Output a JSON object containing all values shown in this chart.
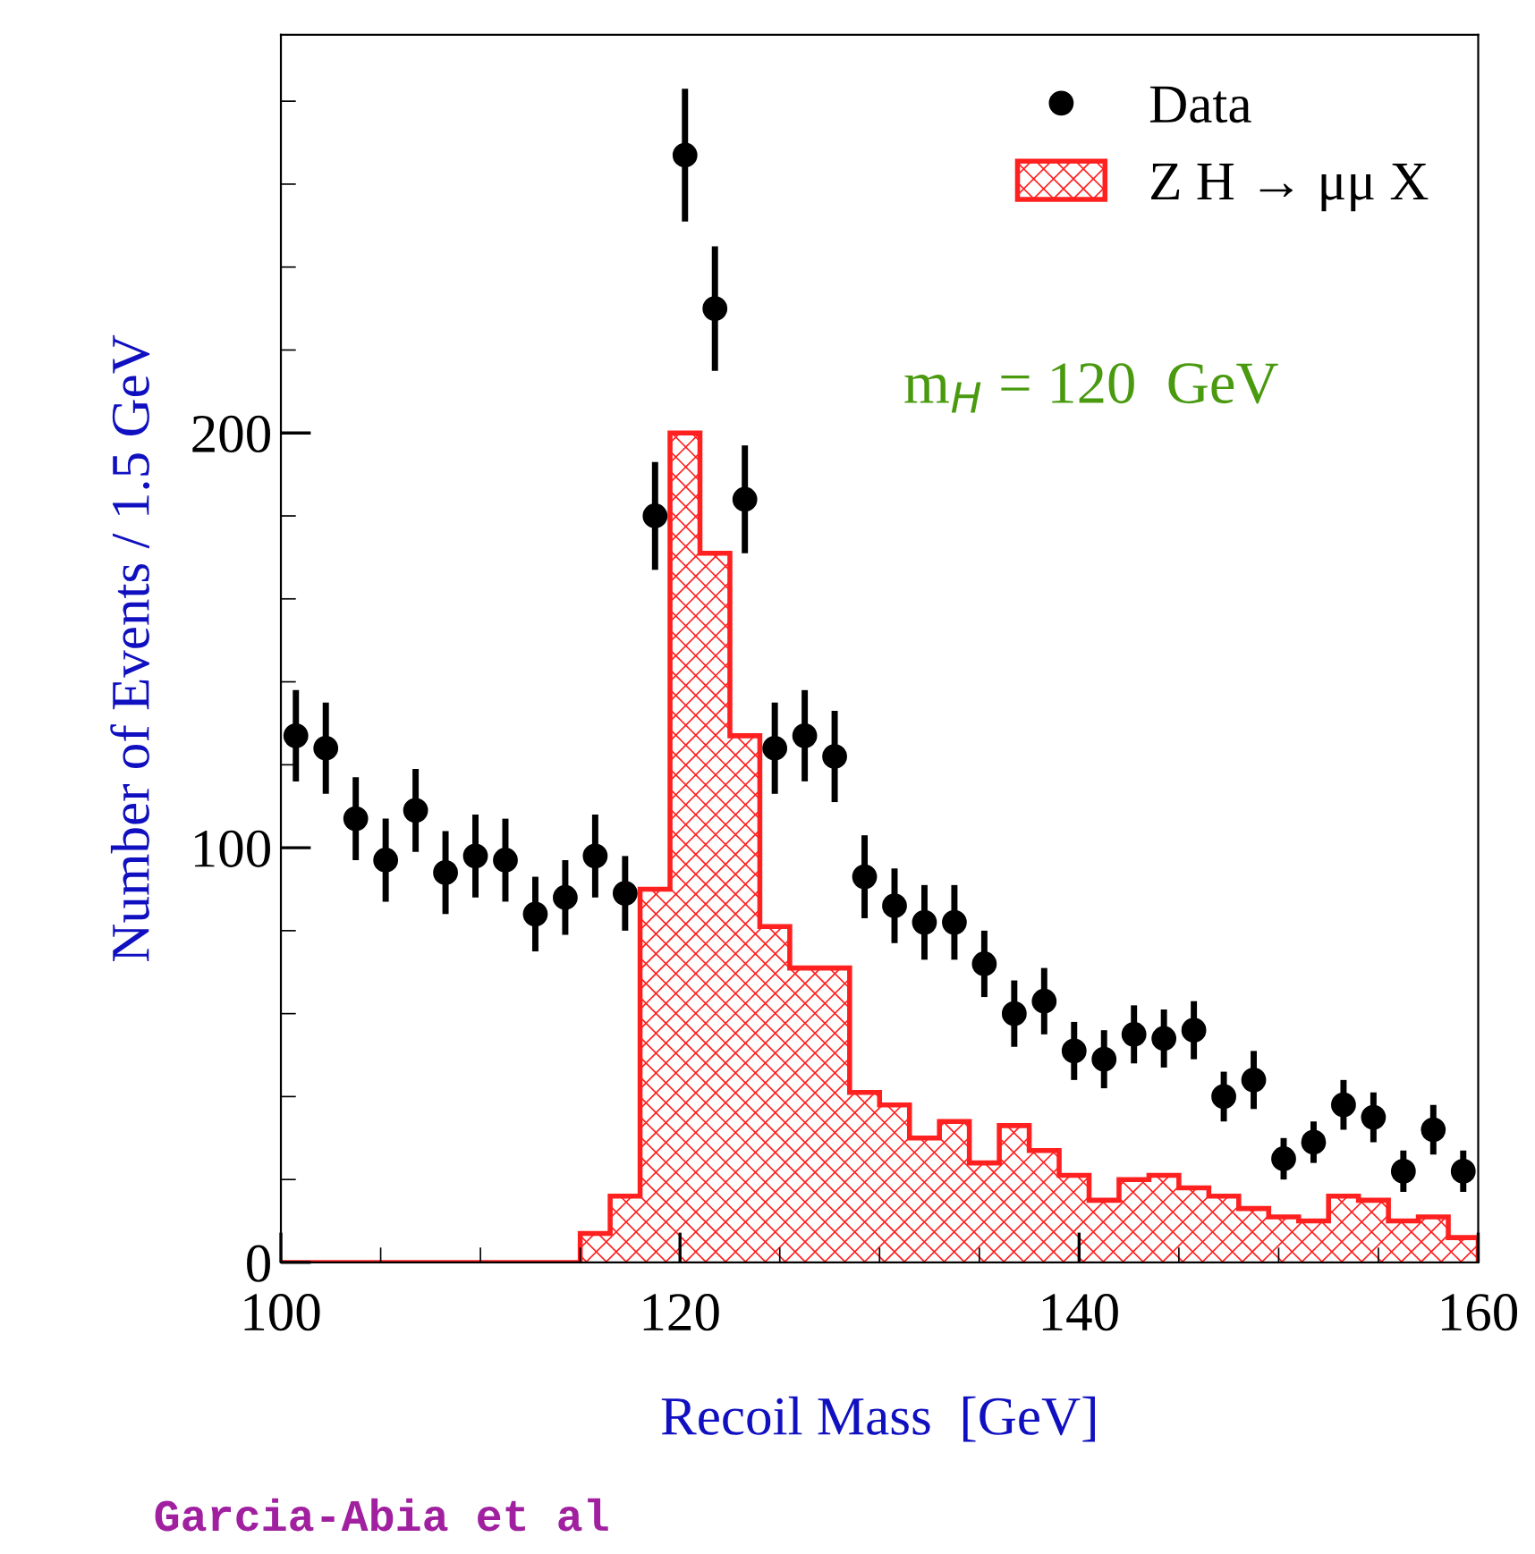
{
  "chart_data": {
    "type": "histogram",
    "xlabel": "Recoil Mass  [GeV]",
    "ylabel": "Number of Events / 1.5 GeV",
    "xlim": [
      100,
      160
    ],
    "xticks": [
      100,
      120,
      140,
      160
    ],
    "ylim": [
      0,
      296
    ],
    "yticks": [
      0,
      100,
      200
    ],
    "grid": false,
    "legend": "top right",
    "bins": [
      100,
      101.5,
      103,
      104.5,
      106,
      107.5,
      109,
      110.5,
      112,
      113.5,
      115,
      116.5,
      118,
      119.5,
      121,
      122.5,
      124,
      125.5,
      127,
      128.5,
      130,
      131.5,
      133,
      134.5,
      136,
      137.5,
      139,
      140.5,
      142,
      143.5,
      145,
      146.5,
      148,
      149.5,
      151,
      152.5,
      154,
      155.5,
      157,
      158.5,
      160
    ],
    "series": [
      {
        "type": "scatter",
        "name": "Data",
        "color": "#000000",
        "marker": "circle",
        "x": [
          100.75,
          102.25,
          103.75,
          105.25,
          106.75,
          108.25,
          109.75,
          111.25,
          112.75,
          114.25,
          115.75,
          117.25,
          118.75,
          120.25,
          121.75,
          123.25,
          124.75,
          126.25,
          127.75,
          129.25,
          130.75,
          132.25,
          133.75,
          135.25,
          136.75,
          138.25,
          139.75,
          141.25,
          142.75,
          144.25,
          145.75,
          147.25,
          148.75,
          150.25,
          151.75,
          153.25,
          154.75,
          156.25,
          157.75,
          159.25
        ],
        "values": [
          127,
          124,
          107,
          97,
          109,
          94,
          98,
          97,
          84,
          88,
          98,
          89,
          180,
          267,
          230,
          184,
          124,
          127,
          122,
          93,
          86,
          82,
          82,
          72,
          60,
          63,
          51,
          49,
          55,
          54,
          56,
          40,
          44,
          25,
          29,
          38,
          35,
          22,
          32,
          22
        ],
        "errors": [
          11,
          11,
          10,
          10,
          10,
          10,
          10,
          10,
          9,
          9,
          10,
          9,
          13,
          16,
          15,
          13,
          11,
          11,
          11,
          10,
          9,
          9,
          9,
          8,
          8,
          8,
          7,
          7,
          7,
          7,
          7,
          6,
          7,
          5,
          5,
          6,
          6,
          5,
          6,
          5
        ]
      },
      {
        "type": "histogram",
        "name": "Z H → μμ X",
        "color": "#ff2020",
        "values": [
          0,
          0,
          0,
          0,
          0,
          0,
          0,
          0,
          0,
          0,
          7,
          16,
          90,
          200,
          171,
          127,
          81,
          71,
          71,
          41,
          38,
          30,
          34,
          24,
          33,
          27,
          21,
          15,
          20,
          21,
          18,
          16,
          13,
          11,
          10,
          16,
          15,
          10,
          11,
          6
        ]
      }
    ],
    "annotations": [
      "m$_{H}$ = 120  GeV",
      "Garcia-Abia et al"
    ]
  }
}
